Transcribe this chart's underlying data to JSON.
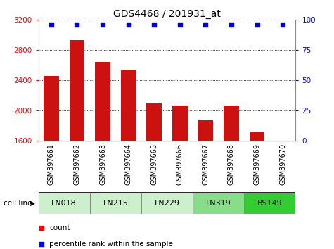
{
  "title": "GDS4468 / 201931_at",
  "samples": [
    "GSM397661",
    "GSM397662",
    "GSM397663",
    "GSM397664",
    "GSM397665",
    "GSM397666",
    "GSM397667",
    "GSM397668",
    "GSM397669",
    "GSM397670"
  ],
  "bar_values": [
    2460,
    2930,
    2640,
    2530,
    2090,
    2070,
    1870,
    2070,
    1720,
    1590
  ],
  "percentile_values": [
    100,
    100,
    100,
    100,
    100,
    100,
    100,
    100,
    100,
    100
  ],
  "cell_lines": [
    {
      "name": "LN018",
      "samples": [
        0,
        1
      ],
      "color": "#ccf0cc"
    },
    {
      "name": "LN215",
      "samples": [
        2,
        3
      ],
      "color": "#ccf0cc"
    },
    {
      "name": "LN229",
      "samples": [
        4,
        5
      ],
      "color": "#ccf0cc"
    },
    {
      "name": "LN319",
      "samples": [
        6,
        7
      ],
      "color": "#88dd88"
    },
    {
      "name": "BS149",
      "samples": [
        8,
        9
      ],
      "color": "#33cc33"
    }
  ],
  "ylim": [
    1600,
    3200
  ],
  "yticks_left": [
    1600,
    2000,
    2400,
    2800,
    3200
  ],
  "yticks_right": [
    0,
    25,
    50,
    75,
    100
  ],
  "bar_color": "#cc1111",
  "dot_color": "#0000cc",
  "label_bg_color": "#c8c8c8",
  "cell_line_label": "cell line",
  "legend_count": "count",
  "legend_percentile": "percentile rank within the sample",
  "title_fontsize": 10,
  "sample_fontsize": 7,
  "cell_fontsize": 8,
  "bar_width": 0.6
}
